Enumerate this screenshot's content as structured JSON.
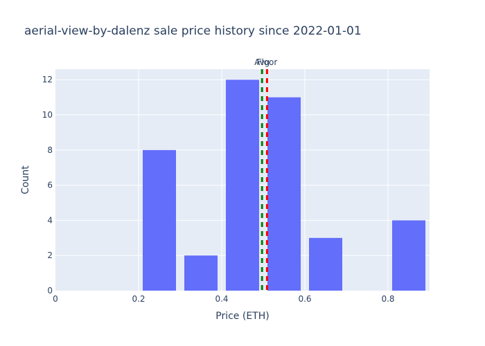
{
  "chart_data": {
    "type": "bar",
    "title": "aerial-view-by-dalenz sale price history since 2022-01-01",
    "xlabel": "Price (ETH)",
    "ylabel": "Count",
    "xlim": [
      0,
      0.9
    ],
    "ylim": [
      0,
      12.6
    ],
    "x_ticks": [
      "0",
      "0.2",
      "0.4",
      "0.6",
      "0.8"
    ],
    "x_tick_values": [
      0,
      0.2,
      0.4,
      0.6,
      0.8
    ],
    "y_ticks": [
      "0",
      "2",
      "4",
      "6",
      "8",
      "10",
      "12"
    ],
    "y_tick_values": [
      0,
      2,
      4,
      6,
      8,
      10,
      12
    ],
    "bins": [
      {
        "x0": 0.0,
        "x1": 0.1,
        "count": 0
      },
      {
        "x0": 0.1,
        "x1": 0.2,
        "count": 0
      },
      {
        "x0": 0.2,
        "x1": 0.3,
        "count": 8
      },
      {
        "x0": 0.3,
        "x1": 0.4,
        "count": 2
      },
      {
        "x0": 0.4,
        "x1": 0.5,
        "count": 12
      },
      {
        "x0": 0.5,
        "x1": 0.6,
        "count": 11
      },
      {
        "x0": 0.6,
        "x1": 0.7,
        "count": 3
      },
      {
        "x0": 0.7,
        "x1": 0.8,
        "count": 0
      },
      {
        "x0": 0.8,
        "x1": 0.9,
        "count": 4
      }
    ],
    "reference_lines": [
      {
        "label": "Avg",
        "x": 0.497,
        "color": "#008000",
        "style": "dashed"
      },
      {
        "label": "Floor",
        "x": 0.509,
        "color": "#ff0000",
        "style": "dashed"
      }
    ],
    "bar_color": "#636efa",
    "plot_background": "#e5ecf6",
    "grid": true,
    "legend": false
  }
}
